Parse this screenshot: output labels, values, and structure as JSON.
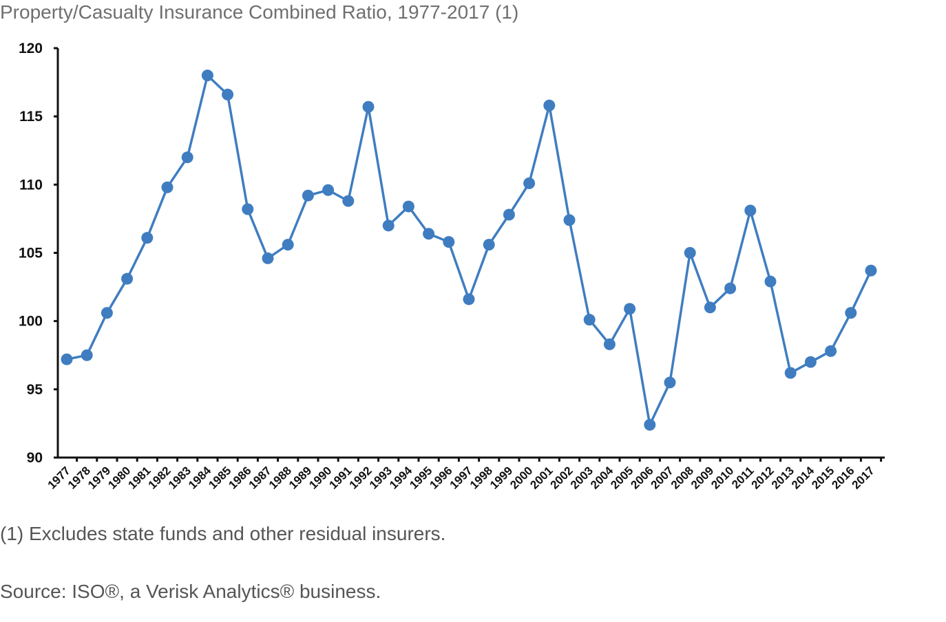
{
  "title": "Property/Casualty Insurance Combined Ratio, 1977-2017 (1)",
  "footnote": "(1) Excludes state funds and other residual insurers.",
  "source": "Source: ISO®, a Verisk Analytics® business.",
  "colors": {
    "line": "#3f7dc0",
    "axis": "#111111"
  },
  "chart_data": {
    "type": "line",
    "title": "Property/Casualty Insurance Combined Ratio, 1977-2017 (1)",
    "xlabel": "",
    "ylabel": "",
    "ylim": [
      90,
      120
    ],
    "yticks": [
      90,
      95,
      100,
      105,
      110,
      115,
      120
    ],
    "grid": false,
    "legend": "none",
    "categories": [
      "1977",
      "1978",
      "1979",
      "1980",
      "1981",
      "1982",
      "1983",
      "1984",
      "1985",
      "1986",
      "1987",
      "1988",
      "1989",
      "1990",
      "1991",
      "1992",
      "1993",
      "1994",
      "1995",
      "1996",
      "1997",
      "1998",
      "1999",
      "2000",
      "2001",
      "2002",
      "2003",
      "2004",
      "2005",
      "2006",
      "2007",
      "2008",
      "2009",
      "2010",
      "2011",
      "2012",
      "2013",
      "2014",
      "2015",
      "2016",
      "2017"
    ],
    "series": [
      {
        "values": [
          97.2,
          97.5,
          100.6,
          103.1,
          106.1,
          109.8,
          112.0,
          118.0,
          116.6,
          108.2,
          104.6,
          105.6,
          109.2,
          109.6,
          108.8,
          115.7,
          107.0,
          108.4,
          106.4,
          105.8,
          101.6,
          105.6,
          107.8,
          110.1,
          115.8,
          107.4,
          100.1,
          98.3,
          100.9,
          92.4,
          95.5,
          105.0,
          101.0,
          102.4,
          108.1,
          102.9,
          96.2,
          97.0,
          97.8,
          100.6,
          103.7
        ]
      }
    ]
  }
}
